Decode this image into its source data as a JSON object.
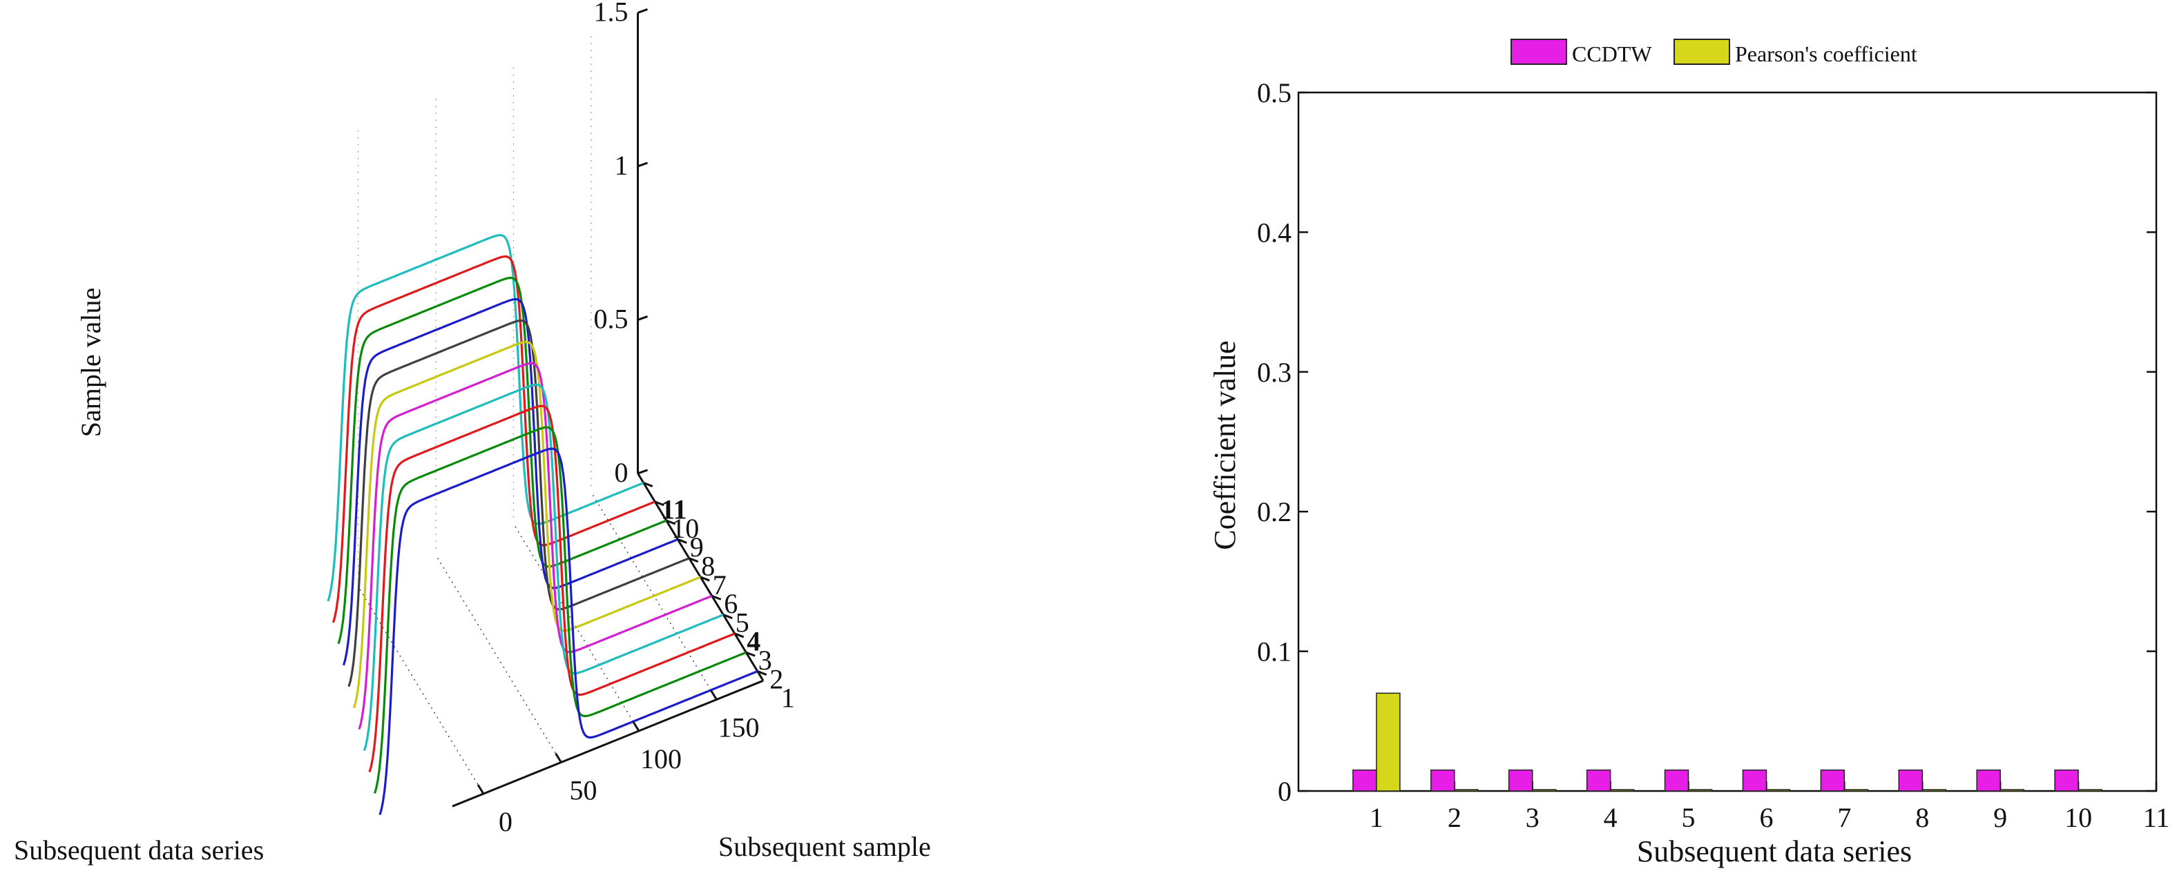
{
  "chart_data": [
    {
      "type": "line",
      "projection": "3d",
      "ylabel": "Sample value",
      "series_axis_label": "Subsequent data series",
      "sample_axis_label": "Subsequent sample",
      "zlim": [
        0,
        1.5
      ],
      "z_ticks": [
        "0",
        "0.5",
        "1",
        "1.5"
      ],
      "series_ticks": [
        "1",
        "2",
        "3",
        "4",
        "5",
        "6",
        "7",
        "8",
        "9",
        "10",
        "11"
      ],
      "sample_ticks": [
        "0",
        "50",
        "100",
        "150"
      ],
      "series": [
        {
          "name": "1",
          "color": "#1c1cc8",
          "rise_sample": 100,
          "plateau": 1.0
        },
        {
          "name": "2",
          "color": "#0a8a0a",
          "rise_sample": 100,
          "plateau": 1.0
        },
        {
          "name": "3",
          "color": "#e01a1a",
          "rise_sample": 100,
          "plateau": 1.0
        },
        {
          "name": "4",
          "color": "#1fbcbc",
          "rise_sample": 100,
          "plateau": 1.0
        },
        {
          "name": "5",
          "color": "#d21fd2",
          "rise_sample": 100,
          "plateau": 1.0
        },
        {
          "name": "6",
          "color": "#c8c814",
          "rise_sample": 100,
          "plateau": 1.0
        },
        {
          "name": "7",
          "color": "#404040",
          "rise_sample": 100,
          "plateau": 1.0
        },
        {
          "name": "8",
          "color": "#1c1cc8",
          "rise_sample": 100,
          "plateau": 1.0
        },
        {
          "name": "9",
          "color": "#0a8a0a",
          "rise_sample": 100,
          "plateau": 1.0
        },
        {
          "name": "10",
          "color": "#e01a1a",
          "rise_sample": 100,
          "plateau": 1.0
        },
        {
          "name": "11",
          "color": "#1fbcbc",
          "rise_sample": 100,
          "plateau": 1.0
        }
      ]
    },
    {
      "type": "bar",
      "xlabel": "Subsequent data series",
      "ylabel": "Coefficient value",
      "ylim": [
        0,
        0.5
      ],
      "y_ticks": [
        "0",
        "0.1",
        "0.2",
        "0.3",
        "0.4",
        "0.5"
      ],
      "categories": [
        "1",
        "2",
        "3",
        "4",
        "5",
        "6",
        "7",
        "8",
        "9",
        "10",
        "11"
      ],
      "legend_position": "top-center",
      "series": [
        {
          "name": "CCDTW",
          "color": "#e61ee6",
          "values": [
            0.015,
            0.015,
            0.015,
            0.015,
            0.015,
            0.015,
            0.015,
            0.015,
            0.015,
            0.015,
            0
          ]
        },
        {
          "name": "Pearson's coefficient",
          "color": "#d6d61a",
          "values": [
            0.07,
            0.001,
            0.001,
            0.001,
            0.001,
            0.001,
            0.001,
            0.001,
            0.001,
            0.001,
            0
          ]
        }
      ]
    }
  ]
}
